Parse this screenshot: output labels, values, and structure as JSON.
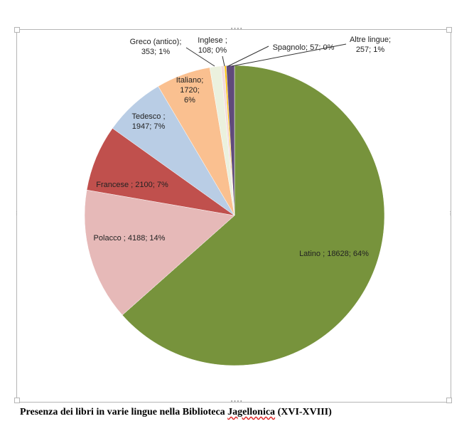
{
  "chart_data": {
    "type": "pie",
    "title": "",
    "slices": [
      {
        "name": "Latino",
        "value": 18628,
        "percent": "64%",
        "label_lines": [
          "Latino ; 18628; 64%"
        ],
        "color": "#77933c"
      },
      {
        "name": "Polacco",
        "value": 4188,
        "percent": "14%",
        "label_lines": [
          "Polacco ; 4188; 14%"
        ],
        "color": "#e6b9b8"
      },
      {
        "name": "Francese",
        "value": 2100,
        "percent": "7%",
        "label_lines": [
          "Francese ; 2100; 7%"
        ],
        "color": "#c0504d"
      },
      {
        "name": "Tedesco",
        "value": 1947,
        "percent": "7%",
        "label_lines": [
          "Tedesco ;",
          "1947; 7%"
        ],
        "color": "#b9cde5"
      },
      {
        "name": "Italiano",
        "value": 1720,
        "percent": "6%",
        "label_lines": [
          "Italiano;",
          "1720;",
          "6%"
        ],
        "color": "#fac090"
      },
      {
        "name": "Greco (antico)",
        "value": 353,
        "percent": "1%",
        "label_lines": [
          "Greco (antico);",
          "353; 1%"
        ],
        "color": "#ebf1de"
      },
      {
        "name": "Inglese",
        "value": 108,
        "percent": "0%",
        "label_lines": [
          "Inglese ;",
          "108; 0%"
        ],
        "color": "#f2dcdb"
      },
      {
        "name": "Spagnolo",
        "value": 57,
        "percent": "0%",
        "label_lines": [
          "Spagnolo; 57; 0%"
        ],
        "color": "#ffc000"
      },
      {
        "name": "Altre lingue",
        "value": 257,
        "percent": "1%",
        "label_lines": [
          "Altre lingue;",
          "257; 1%"
        ],
        "color": "#604a7b"
      }
    ]
  },
  "caption": {
    "text_before": "Presenza dei libri in varie lingue nella Biblioteca ",
    "text_flagged": "Jagellonica",
    "text_after": " (XVI-XVIII)"
  }
}
